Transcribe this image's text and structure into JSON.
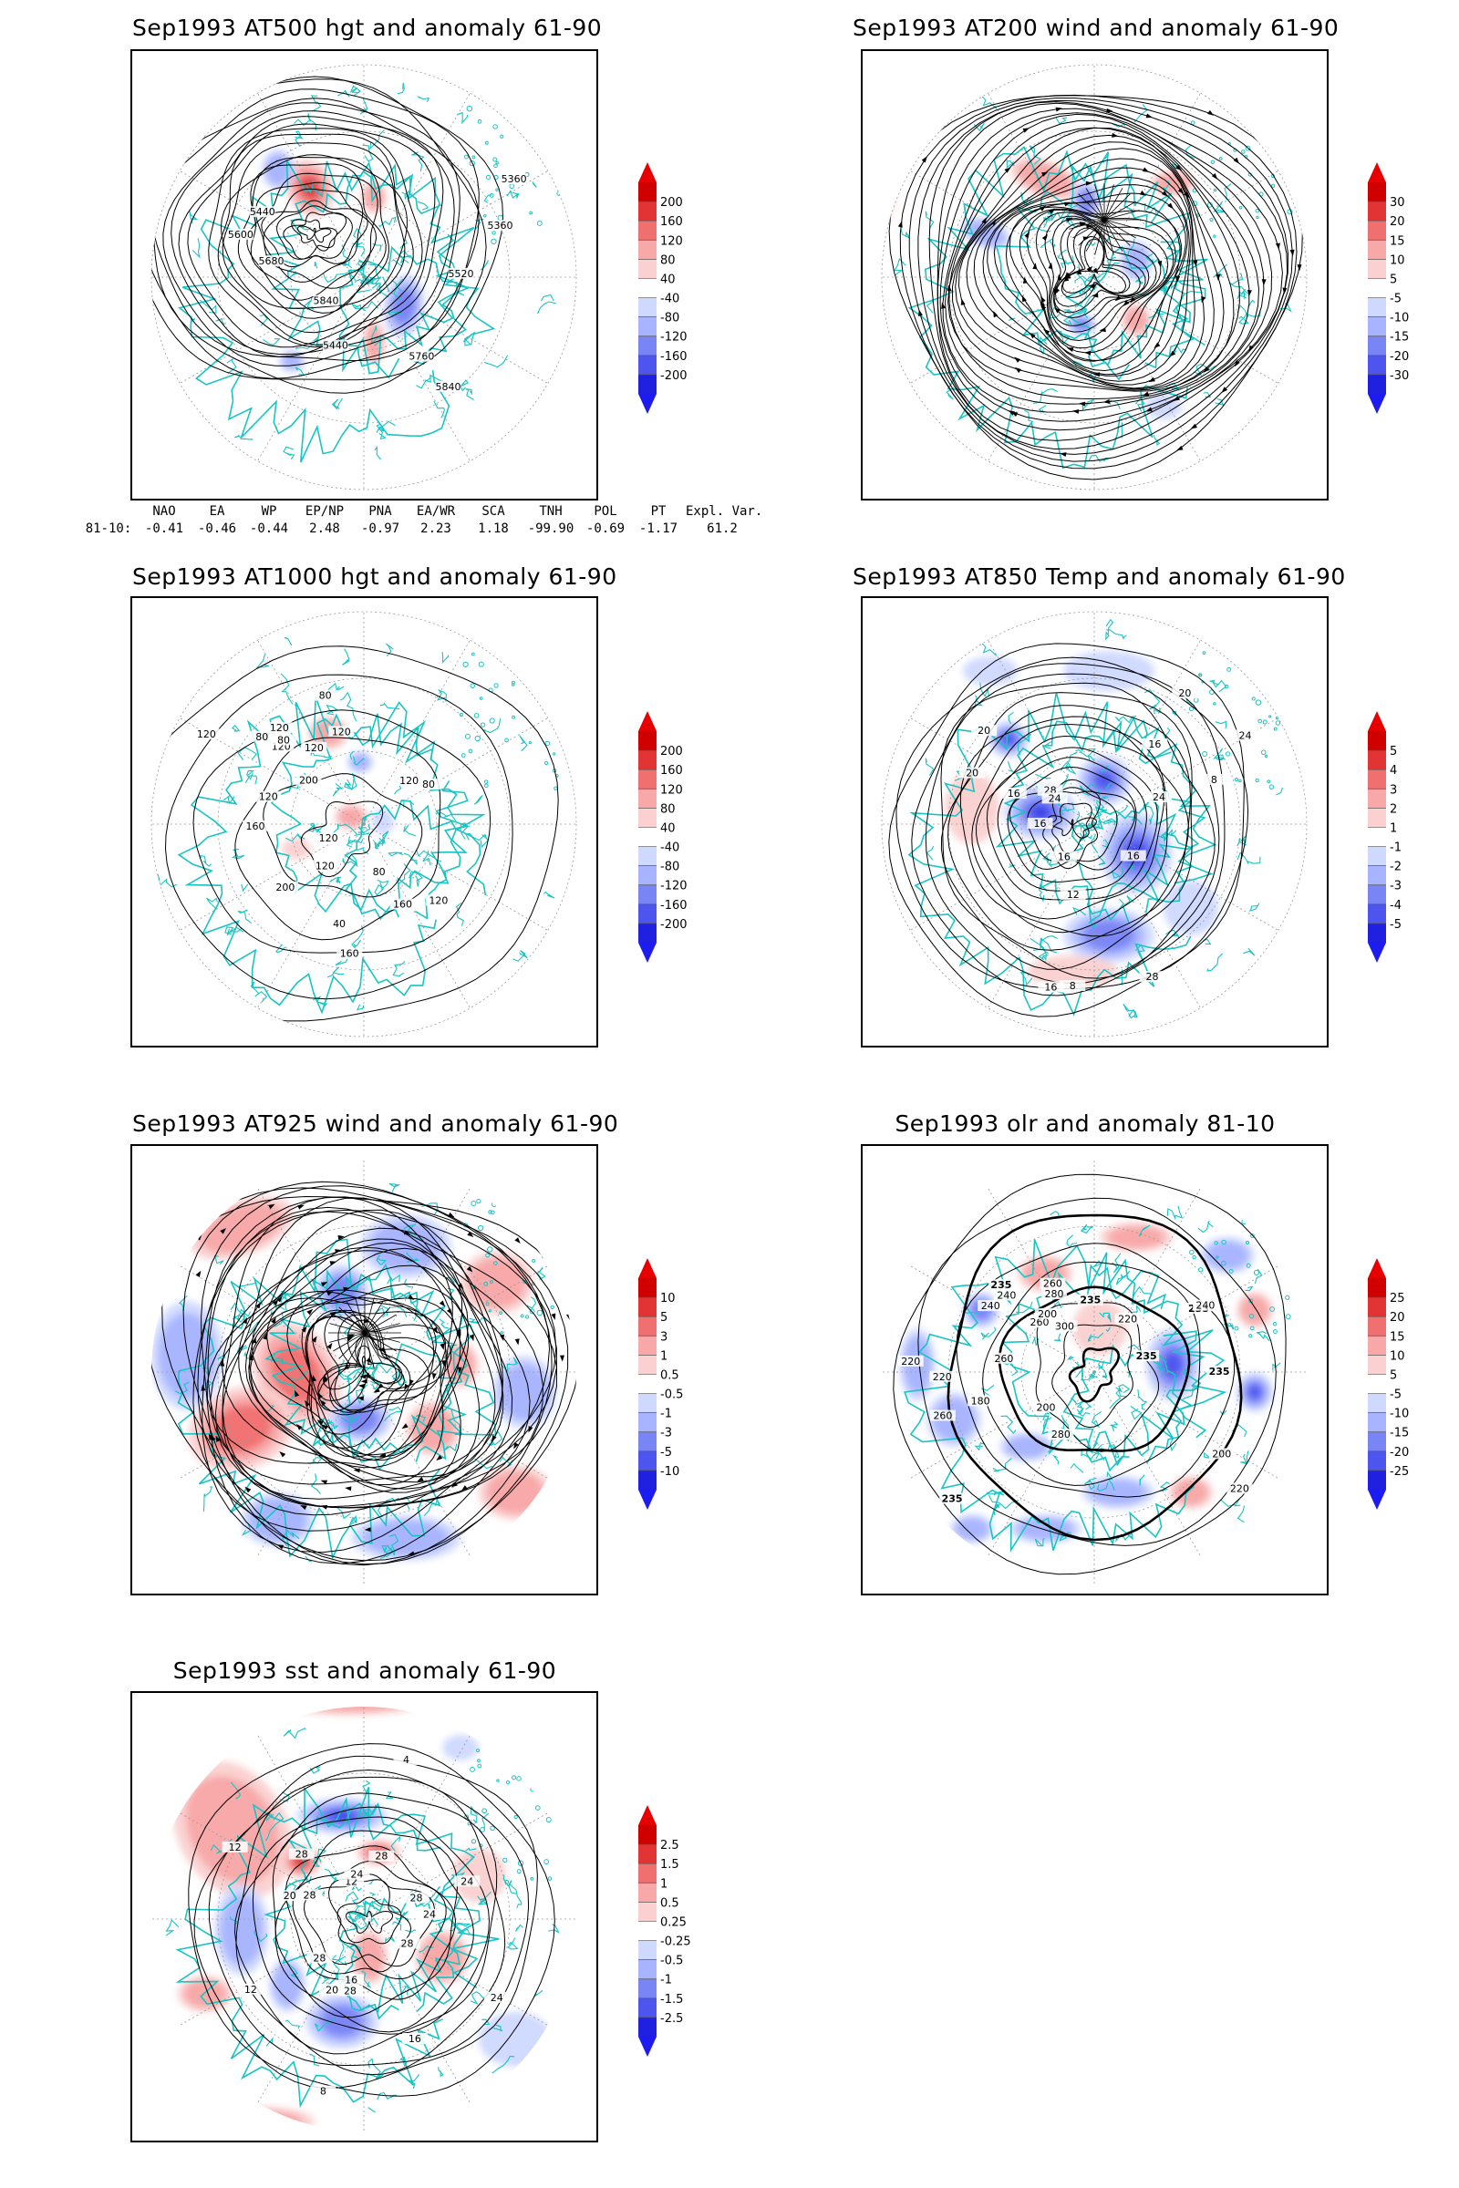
{
  "colors": {
    "pos": [
      "#fbd0d0",
      "#f8a8a8",
      "#f07070",
      "#e23434",
      "#d00000"
    ],
    "neg": [
      "#cfd8ff",
      "#a8b4ff",
      "#7a85f5",
      "#4d55ee",
      "#2020e0"
    ],
    "coast": "#19c4c4"
  },
  "panels": [
    {
      "id": "p1",
      "title": "Sep1993 AT500 hgt and anomaly 61-90",
      "levels": [
        "200",
        "160",
        "120",
        "80",
        "40",
        "-40",
        "-80",
        "-120",
        "-160",
        "-200"
      ],
      "contour_labels": [
        "5840",
        "5440",
        "5360",
        "5360",
        "5440",
        "5520",
        "5600",
        "5680",
        "5760",
        "5840"
      ]
    },
    {
      "id": "p2",
      "title": "Sep1993 AT200 wind and anomaly 61-90",
      "levels": [
        "30",
        "20",
        "15",
        "10",
        "5",
        "-5",
        "-10",
        "-15",
        "-20",
        "-30"
      ],
      "contour_labels": []
    },
    {
      "id": "p3",
      "title": "Sep1993 AT1000 hgt and anomaly 61-90",
      "levels": [
        "200",
        "160",
        "120",
        "80",
        "40",
        "-40",
        "-80",
        "-120",
        "-160",
        "-200"
      ],
      "contour_labels": [
        "120",
        "120",
        "80",
        "120",
        "200",
        "160",
        "120",
        "80",
        "80",
        "80",
        "120",
        "40",
        "160",
        "200",
        "160",
        "120",
        "120",
        "120",
        "80",
        "120",
        "120"
      ]
    },
    {
      "id": "p4",
      "title": "Sep1993 AT850 Temp and anomaly 61-90",
      "levels": [
        "5",
        "4",
        "3",
        "2",
        "1",
        "-1",
        "-2",
        "-3",
        "-4",
        "-5"
      ],
      "contour_labels": [
        "16",
        "12",
        "8",
        "16",
        "16",
        "8",
        "24",
        "20",
        "16",
        "28",
        "24",
        "20",
        "16",
        "16",
        "28",
        "24",
        "20"
      ]
    },
    {
      "id": "p5",
      "title": "Sep1993 AT925 wind and anomaly 61-90",
      "levels": [
        "10",
        "5",
        "3",
        "1",
        "0.5",
        "-0.5",
        "-1",
        "-3",
        "-5",
        "-10"
      ],
      "contour_labels": []
    },
    {
      "id": "p6",
      "title": "Sep1993 olr and anomaly 81-10",
      "levels": [
        "25",
        "20",
        "15",
        "10",
        "5",
        "-5",
        "-10",
        "-15",
        "-20",
        "-25"
      ],
      "contour_labels": [
        "280",
        "235",
        "240",
        "235",
        "200",
        "260",
        "220",
        "235",
        "220",
        "200",
        "260",
        "220",
        "235",
        "180",
        "240",
        "220",
        "280",
        "260",
        "235",
        "300",
        "260",
        "240",
        "235",
        "200"
      ]
    },
    {
      "id": "p7",
      "title": "Sep1993 sst and anomaly 61-90",
      "levels": [
        "2.5",
        "1.5",
        "1",
        "0.5",
        "0.25",
        "-0.25",
        "-0.5",
        "-1",
        "-1.5",
        "-2.5"
      ],
      "contour_labels": [
        "28",
        "28",
        "24",
        "20",
        "24",
        "20",
        "16",
        "12",
        "12",
        "28",
        "24",
        "28",
        "16",
        "12",
        "8",
        "4",
        "28",
        "28",
        "28",
        "24"
      ]
    }
  ],
  "indices": {
    "headers": [
      "NAO",
      "EA",
      "WP",
      "EP/NP",
      "PNA",
      "EA/WR",
      "SCA",
      "TNH",
      "POL",
      "PT",
      "Expl. Var."
    ],
    "row_label": "81-10:",
    "values": [
      "-0.41",
      "-0.46",
      "-0.44",
      "2.48",
      "-0.97",
      "2.23",
      "1.18",
      "-99.90",
      "-0.69",
      "-1.17",
      "61.2"
    ]
  }
}
